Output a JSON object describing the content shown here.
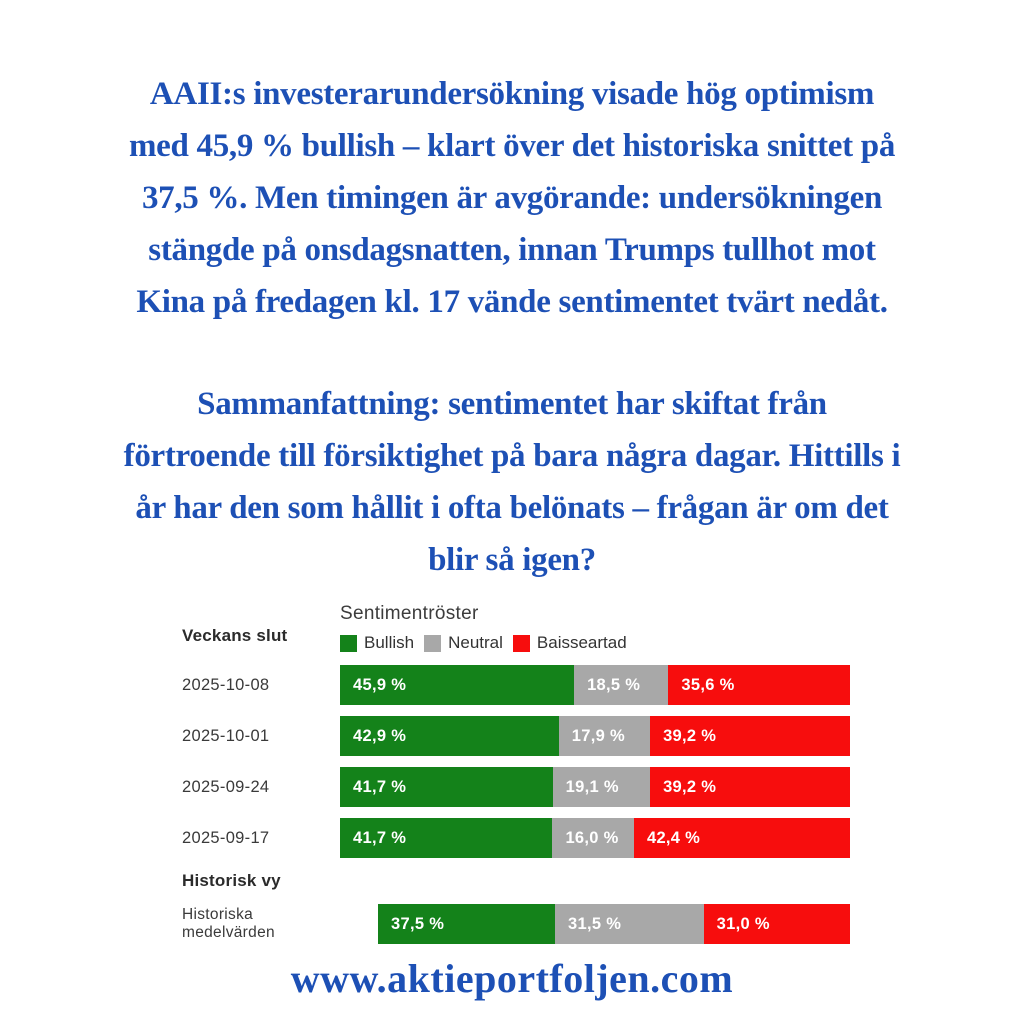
{
  "page": {
    "intro_paragraph_1": {
      "lines": [
        "AAII:s investerarundersökning visade hög optimism",
        "med 45,9 % bullish – klart över det historiska snittet på",
        "37,5 %. Men timingen är avgörande: undersökningen",
        "stängde på onsdagsnatten, innan Trumps tullhot mot",
        "Kina på fredagen kl. 17 vände sentimentet tvärt nedåt."
      ]
    },
    "intro_paragraph_2": {
      "lines": [
        "Sammanfattning: sentimentet har skiftat från",
        "förtroende till försiktighet på bara några dagar. Hittills i",
        "år har den som hållit i ofta belönats – frågan är om det",
        "blir så igen?"
      ]
    },
    "footer_url": "www.aktieportfoljen.com"
  },
  "chart_data": {
    "type": "bar",
    "orientation": "horizontal",
    "stacked": true,
    "title": "Sentimentröster",
    "legend_position": "top",
    "xlim": [
      0,
      100
    ],
    "section_labels": {
      "weekly": "Veckans slut",
      "historical": "Historisk vy"
    },
    "categories": [
      "2025-10-08",
      "2025-10-01",
      "2025-09-24",
      "2025-09-17",
      "Historiska medelvärden"
    ],
    "series": [
      {
        "name": "Bullish",
        "color": "#14821a",
        "values": [
          45.9,
          42.9,
          41.7,
          41.7,
          37.5
        ]
      },
      {
        "name": "Neutral",
        "color": "#a8a8a8",
        "values": [
          18.5,
          17.9,
          19.1,
          16.0,
          31.5
        ]
      },
      {
        "name": "Baisseartad",
        "color": "#f70d0d",
        "values": [
          35.6,
          39.2,
          39.2,
          42.4,
          31.0
        ]
      }
    ],
    "rows": [
      {
        "label": "2025-10-08",
        "section": "weekly",
        "values": [
          45.9,
          18.5,
          35.6
        ],
        "labels": [
          "45,9 %",
          "18,5 %",
          "35,6 %"
        ]
      },
      {
        "label": "2025-10-01",
        "section": "weekly",
        "values": [
          42.9,
          17.9,
          39.2
        ],
        "labels": [
          "42,9 %",
          "17,9 %",
          "39,2 %"
        ]
      },
      {
        "label": "2025-09-24",
        "section": "weekly",
        "values": [
          41.7,
          19.1,
          39.2
        ],
        "labels": [
          "41,7 %",
          "19,1 %",
          "39,2 %"
        ]
      },
      {
        "label": "2025-09-17",
        "section": "weekly",
        "values": [
          41.7,
          16.0,
          42.4
        ],
        "labels": [
          "41,7 %",
          "16,0 %",
          "42,4 %"
        ]
      },
      {
        "label": "Historiska medelvärden",
        "section": "historical",
        "values": [
          37.5,
          31.5,
          31.0
        ],
        "labels": [
          "37,5 %",
          "31,5 %",
          "31,0 %"
        ]
      }
    ]
  },
  "colors": {
    "accent_blue": "#1d50b5",
    "bullish_green": "#14821a",
    "neutral_gray": "#a8a8a8",
    "bearish_red": "#f70d0d",
    "chart_text": "#333333",
    "background": "#ffffff"
  }
}
